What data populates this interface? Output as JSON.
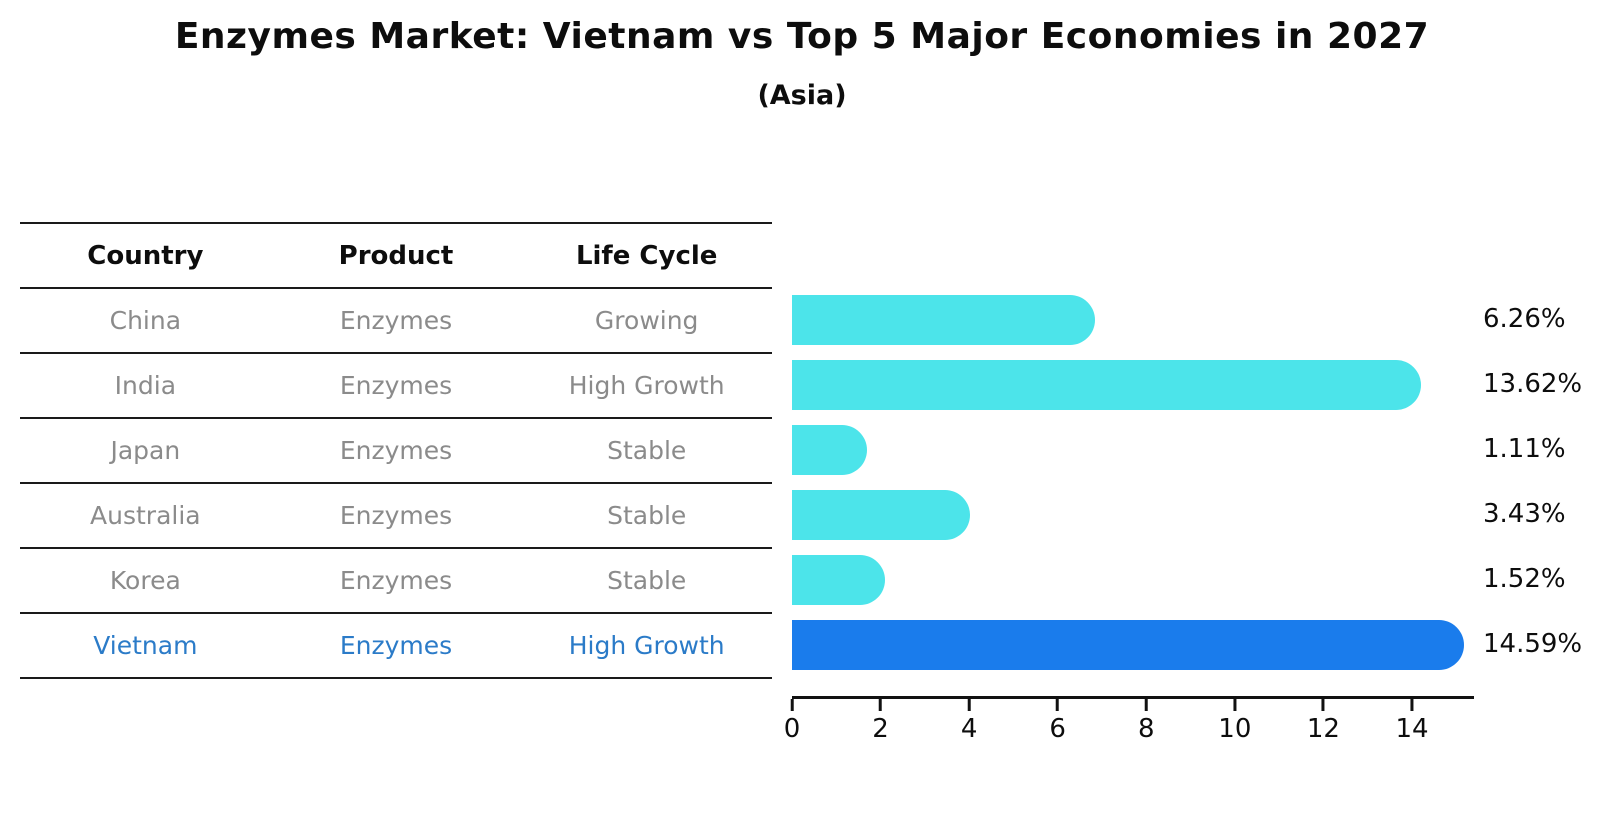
{
  "title": "Enzymes Market: Vietnam vs Top 5 Major Economies in 2027",
  "subtitle": "(Asia)",
  "table": {
    "headers": [
      "Country",
      "Product",
      "Life Cycle"
    ],
    "rows": [
      {
        "country": "China",
        "product": "Enzymes",
        "life_cycle": "Growing",
        "highlight": false
      },
      {
        "country": "India",
        "product": "Enzymes",
        "life_cycle": "High Growth",
        "highlight": false
      },
      {
        "country": "Japan",
        "product": "Enzymes",
        "life_cycle": "Stable",
        "highlight": false
      },
      {
        "country": "Australia",
        "product": "Enzymes",
        "life_cycle": "Stable",
        "highlight": false
      },
      {
        "country": "Korea",
        "product": "Enzymes",
        "life_cycle": "Stable",
        "highlight": false
      },
      {
        "country": "Vietnam",
        "product": "Enzymes",
        "life_cycle": "High Growth",
        "highlight": true
      }
    ]
  },
  "chart_data": {
    "type": "bar",
    "orientation": "horizontal",
    "title": "Enzymes Market: Vietnam vs Top 5 Major Economies in 2027",
    "subtitle": "(Asia)",
    "categories": [
      "China",
      "India",
      "Japan",
      "Australia",
      "Korea",
      "Vietnam"
    ],
    "values": [
      6.26,
      13.62,
      1.11,
      3.43,
      1.52,
      14.59
    ],
    "value_labels": [
      "6.26%",
      "13.62%",
      "1.11%",
      "3.43%",
      "1.52%",
      "14.59%"
    ],
    "x_ticks": [
      0,
      2,
      4,
      6,
      8,
      10,
      12,
      14
    ],
    "xlim": [
      0,
      15.4
    ],
    "grid": false,
    "legend": false,
    "bar_color": "#4ce4ea",
    "highlight_color": "#1a7cec",
    "highlight_index": 5,
    "highlight_text_color": "#2b7bc8",
    "row_text_color": "#8b8b8b"
  }
}
